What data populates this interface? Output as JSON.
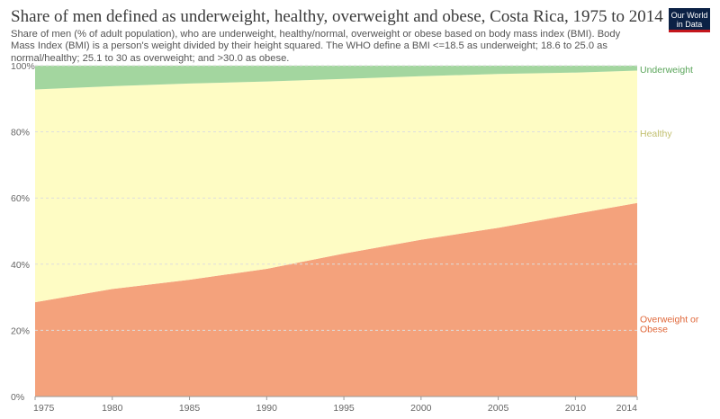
{
  "header": {
    "title": "Share of men defined as underweight, healthy, overweight and obese, Costa Rica, 1975 to 2014",
    "subtitle": "Share of men (% of adult population), who are underweight, healthy/normal, overweight or obese based on body mass index (BMI). Body Mass Index (BMI) is a person's weight divided by their height squared. The WHO define a BMI <=18.5 as underweight; 18.6 to 25.0 as normal/healthy; 25.1 to 30 as overweight; and >30.0 as obese.",
    "logo_line1": "Our World",
    "logo_line2": "in Data"
  },
  "chart_data": {
    "type": "area",
    "stacked": true,
    "title": "Share of men defined as underweight, healthy, overweight and obese, Costa Rica, 1975 to 2014",
    "x": [
      1975,
      1980,
      1985,
      1990,
      1995,
      2000,
      2005,
      2010,
      2014
    ],
    "xlim": [
      1975,
      2014
    ],
    "ylim": [
      0,
      100
    ],
    "x_ticks": [
      "1975",
      "1980",
      "1985",
      "1990",
      "1995",
      "2000",
      "2005",
      "2010",
      "2014"
    ],
    "y_ticks": [
      "0%",
      "20%",
      "40%",
      "60%",
      "80%",
      "100%"
    ],
    "y_tick_values": [
      0,
      20,
      40,
      60,
      80,
      100
    ],
    "grid": true,
    "legend": "right-inline",
    "series": [
      {
        "name": "Overweight or Obese",
        "label_lines": [
          "Overweight or",
          "Obese"
        ],
        "color": "#f4a27c",
        "label_color": "#e0683a",
        "values": [
          28.5,
          32.5,
          35.3,
          38.6,
          43.2,
          47.4,
          51.0,
          55.2,
          58.5
        ]
      },
      {
        "name": "Healthy",
        "label_lines": [
          "Healthy"
        ],
        "color": "#fefcc4",
        "label_color": "#c2c070",
        "values": [
          64.3,
          61.3,
          59.3,
          56.6,
          52.8,
          49.4,
          46.5,
          42.7,
          40.0
        ]
      },
      {
        "name": "Underweight",
        "label_lines": [
          "Underweight"
        ],
        "color": "#a3d69f",
        "label_color": "#5aa55a",
        "values": [
          7.2,
          6.2,
          5.4,
          4.8,
          4.0,
          3.2,
          2.5,
          2.1,
          1.5
        ]
      }
    ]
  }
}
